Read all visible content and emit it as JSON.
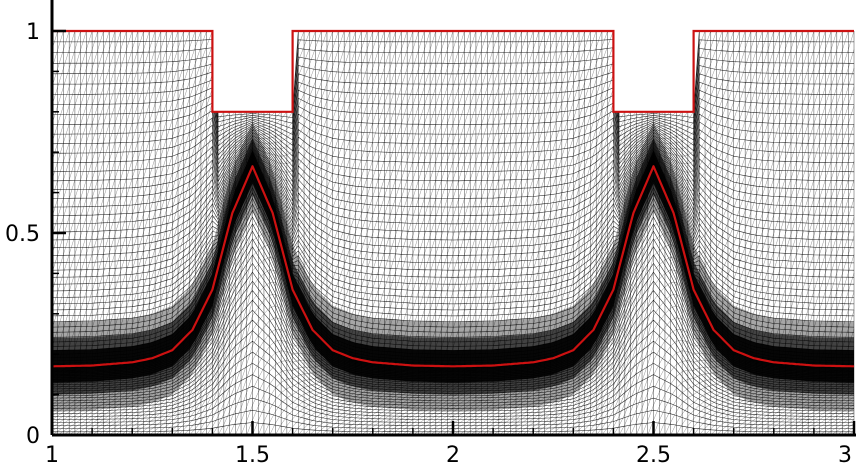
{
  "chart_data": {
    "type": "line",
    "title": "",
    "xlabel": "",
    "ylabel": "",
    "xlim": [
      1,
      3
    ],
    "ylim": [
      0,
      1
    ],
    "x_ticks": [
      "1",
      "1.5",
      "2",
      "2.5",
      "3"
    ],
    "y_ticks": [
      "0",
      "0.5",
      "1"
    ],
    "grid": false,
    "legend": "none",
    "colors": {
      "boundary": "#cc1111",
      "mesh": "#000000",
      "axes": "#000000",
      "background": "#ffffff"
    },
    "series": [
      {
        "x": [
          1,
          1.1,
          1.2,
          1.25,
          1.3,
          1.35,
          1.4,
          1.45,
          1.5,
          1.55,
          1.6,
          1.65,
          1.7,
          1.75,
          1.8,
          1.9,
          2.0,
          2.1,
          2.2,
          2.25,
          2.3,
          2.35,
          2.4,
          2.45,
          2.5,
          2.55,
          2.6,
          2.65,
          2.7,
          2.75,
          2.8,
          2.9,
          3.0
        ],
        "y": [
          0.17,
          0.172,
          0.18,
          0.19,
          0.21,
          0.26,
          0.36,
          0.55,
          0.665,
          0.55,
          0.36,
          0.26,
          0.21,
          0.19,
          0.18,
          0.172,
          0.17,
          0.172,
          0.18,
          0.19,
          0.21,
          0.26,
          0.36,
          0.55,
          0.665,
          0.55,
          0.36,
          0.26,
          0.21,
          0.19,
          0.18,
          0.172,
          0.17
        ]
      },
      {
        "x": [
          1,
          1.4,
          1.4,
          1.6,
          1.6,
          2.4,
          2.4,
          2.6,
          2.6,
          3.0
        ],
        "y": [
          1,
          1,
          0.8,
          0.8,
          1,
          1,
          0.8,
          0.8,
          1,
          1
        ]
      }
    ]
  }
}
